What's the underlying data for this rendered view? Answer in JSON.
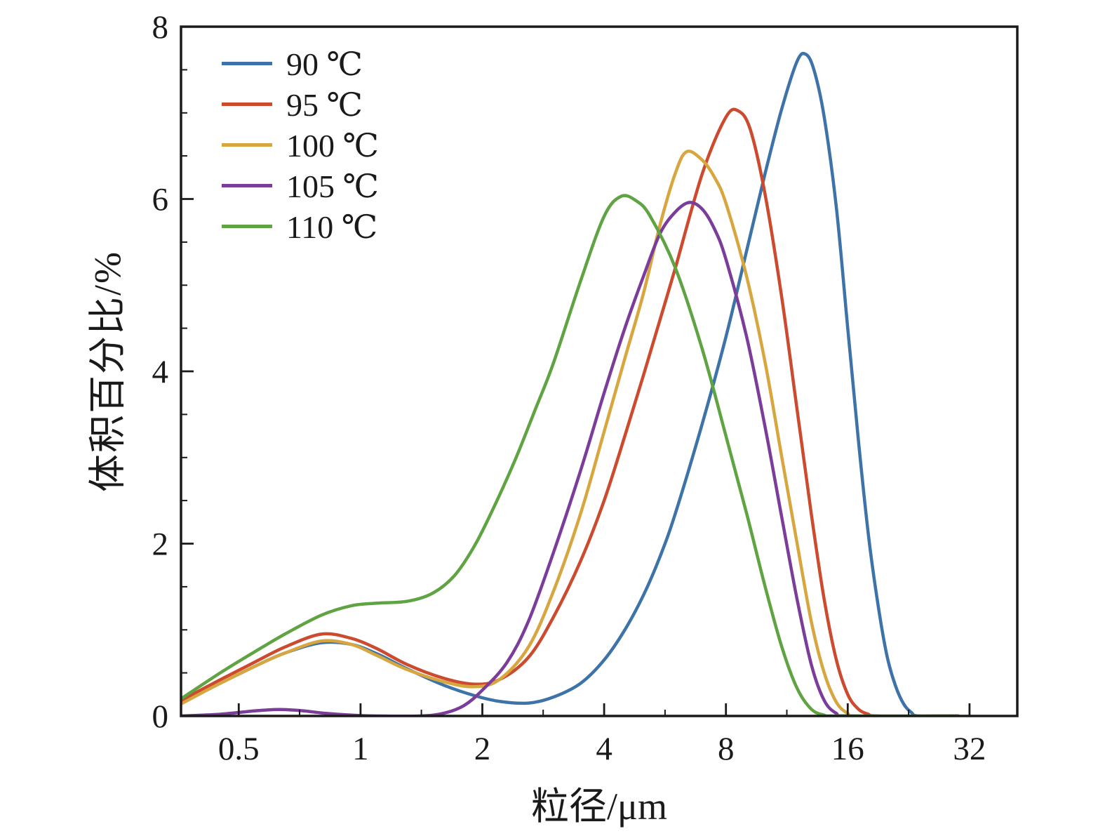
{
  "chart_data": {
    "type": "line",
    "title": "",
    "xlabel": "粒径/μm",
    "ylabel": "体积百分比/%",
    "x_scale": "log2",
    "xlim": [
      0.36,
      42
    ],
    "ylim": [
      0,
      8
    ],
    "x_ticks": [
      0.5,
      1,
      2,
      4,
      8,
      16,
      32
    ],
    "x_tick_labels": [
      "0.5",
      "1",
      "2",
      "4",
      "8",
      "16",
      "32"
    ],
    "x_minor_ticks": [
      0.707,
      1.414,
      2.828,
      5.657,
      11.314,
      22.627
    ],
    "y_ticks": [
      0,
      2,
      4,
      6,
      8
    ],
    "y_tick_labels": [
      "0",
      "2",
      "4",
      "6",
      "8"
    ],
    "y_minor_ticks": [
      0.5,
      1,
      1.5,
      2.5,
      3,
      3.5,
      4.5,
      5,
      5.5,
      6.5,
      7,
      7.5
    ],
    "grid": false,
    "legend_position": "top-left",
    "frame_color": "#1a1a1a",
    "series": [
      {
        "name": "90 ℃",
        "color": "#3d73a8",
        "points": [
          [
            0.36,
            0.15
          ],
          [
            0.45,
            0.38
          ],
          [
            0.55,
            0.58
          ],
          [
            0.65,
            0.73
          ],
          [
            0.8,
            0.85
          ],
          [
            0.95,
            0.83
          ],
          [
            1.1,
            0.72
          ],
          [
            1.3,
            0.55
          ],
          [
            1.6,
            0.36
          ],
          [
            1.9,
            0.24
          ],
          [
            2.2,
            0.17
          ],
          [
            2.6,
            0.15
          ],
          [
            3.0,
            0.22
          ],
          [
            3.5,
            0.38
          ],
          [
            4.0,
            0.65
          ],
          [
            4.5,
            1.0
          ],
          [
            5.0,
            1.4
          ],
          [
            5.5,
            1.85
          ],
          [
            6.0,
            2.35
          ],
          [
            7.0,
            3.4
          ],
          [
            8.0,
            4.4
          ],
          [
            9.0,
            5.4
          ],
          [
            10.0,
            6.3
          ],
          [
            11.0,
            7.05
          ],
          [
            12.0,
            7.6
          ],
          [
            12.6,
            7.68
          ],
          [
            13.2,
            7.5
          ],
          [
            14.0,
            6.95
          ],
          [
            15.0,
            5.9
          ],
          [
            16.0,
            4.5
          ],
          [
            17.0,
            3.2
          ],
          [
            18.0,
            2.1
          ],
          [
            19.0,
            1.3
          ],
          [
            20.0,
            0.7
          ],
          [
            21.0,
            0.35
          ],
          [
            22.0,
            0.14
          ],
          [
            23.0,
            0.04
          ],
          [
            24.0,
            0.0
          ],
          [
            30.0,
            0.0
          ]
        ]
      },
      {
        "name": "95 ℃",
        "color": "#cc4a2e",
        "points": [
          [
            0.36,
            0.18
          ],
          [
            0.45,
            0.42
          ],
          [
            0.55,
            0.63
          ],
          [
            0.65,
            0.8
          ],
          [
            0.8,
            0.95
          ],
          [
            0.95,
            0.9
          ],
          [
            1.1,
            0.78
          ],
          [
            1.3,
            0.6
          ],
          [
            1.6,
            0.44
          ],
          [
            1.9,
            0.37
          ],
          [
            2.2,
            0.42
          ],
          [
            2.6,
            0.68
          ],
          [
            3.0,
            1.15
          ],
          [
            3.5,
            1.8
          ],
          [
            4.0,
            2.5
          ],
          [
            4.5,
            3.25
          ],
          [
            5.0,
            3.95
          ],
          [
            5.5,
            4.6
          ],
          [
            6.0,
            5.2
          ],
          [
            7.0,
            6.3
          ],
          [
            8.0,
            6.95
          ],
          [
            8.6,
            7.02
          ],
          [
            9.2,
            6.8
          ],
          [
            10.0,
            6.05
          ],
          [
            11.0,
            4.85
          ],
          [
            12.0,
            3.55
          ],
          [
            13.0,
            2.35
          ],
          [
            14.0,
            1.35
          ],
          [
            15.0,
            0.65
          ],
          [
            16.0,
            0.25
          ],
          [
            17.0,
            0.08
          ],
          [
            18.0,
            0.02
          ],
          [
            19.0,
            0.0
          ],
          [
            30.0,
            0.0
          ]
        ]
      },
      {
        "name": "100 ℃",
        "color": "#d8a63f",
        "points": [
          [
            0.36,
            0.14
          ],
          [
            0.45,
            0.38
          ],
          [
            0.55,
            0.58
          ],
          [
            0.65,
            0.73
          ],
          [
            0.8,
            0.87
          ],
          [
            0.95,
            0.83
          ],
          [
            1.1,
            0.7
          ],
          [
            1.3,
            0.54
          ],
          [
            1.6,
            0.4
          ],
          [
            1.9,
            0.34
          ],
          [
            2.2,
            0.42
          ],
          [
            2.6,
            0.8
          ],
          [
            3.0,
            1.45
          ],
          [
            3.5,
            2.35
          ],
          [
            4.0,
            3.3
          ],
          [
            4.5,
            4.15
          ],
          [
            5.0,
            4.9
          ],
          [
            5.5,
            5.7
          ],
          [
            6.0,
            6.3
          ],
          [
            6.4,
            6.55
          ],
          [
            7.0,
            6.45
          ],
          [
            7.5,
            6.25
          ],
          [
            8.0,
            5.95
          ],
          [
            9.0,
            5.1
          ],
          [
            10.0,
            4.1
          ],
          [
            11.0,
            3.0
          ],
          [
            12.0,
            2.0
          ],
          [
            13.0,
            1.1
          ],
          [
            14.0,
            0.5
          ],
          [
            15.0,
            0.16
          ],
          [
            16.0,
            0.03
          ],
          [
            17.0,
            0.0
          ],
          [
            30.0,
            0.0
          ]
        ]
      },
      {
        "name": "105 ℃",
        "color": "#7c3d9a",
        "points": [
          [
            0.36,
            0.0
          ],
          [
            0.45,
            0.02
          ],
          [
            0.55,
            0.06
          ],
          [
            0.63,
            0.075
          ],
          [
            0.72,
            0.06
          ],
          [
            0.82,
            0.03
          ],
          [
            0.95,
            0.01
          ],
          [
            1.1,
            0.0
          ],
          [
            1.4,
            0.0
          ],
          [
            1.6,
            0.03
          ],
          [
            1.8,
            0.12
          ],
          [
            2.0,
            0.3
          ],
          [
            2.3,
            0.62
          ],
          [
            2.6,
            1.1
          ],
          [
            3.0,
            1.9
          ],
          [
            3.5,
            2.85
          ],
          [
            4.0,
            3.75
          ],
          [
            4.5,
            4.5
          ],
          [
            5.0,
            5.1
          ],
          [
            5.5,
            5.6
          ],
          [
            6.0,
            5.85
          ],
          [
            6.5,
            5.96
          ],
          [
            7.0,
            5.88
          ],
          [
            7.5,
            5.65
          ],
          [
            8.0,
            5.3
          ],
          [
            9.0,
            4.4
          ],
          [
            10.0,
            3.35
          ],
          [
            11.0,
            2.3
          ],
          [
            12.0,
            1.35
          ],
          [
            13.0,
            0.6
          ],
          [
            14.0,
            0.18
          ],
          [
            15.0,
            0.03
          ],
          [
            16.0,
            0.0
          ],
          [
            30.0,
            0.0
          ]
        ]
      },
      {
        "name": "110 ℃",
        "color": "#5fa342",
        "points": [
          [
            0.36,
            0.2
          ],
          [
            0.45,
            0.5
          ],
          [
            0.55,
            0.75
          ],
          [
            0.65,
            0.95
          ],
          [
            0.8,
            1.17
          ],
          [
            0.95,
            1.28
          ],
          [
            1.1,
            1.31
          ],
          [
            1.3,
            1.33
          ],
          [
            1.5,
            1.42
          ],
          [
            1.7,
            1.62
          ],
          [
            1.9,
            1.95
          ],
          [
            2.1,
            2.35
          ],
          [
            2.4,
            2.95
          ],
          [
            2.7,
            3.55
          ],
          [
            3.0,
            4.1
          ],
          [
            3.5,
            5.05
          ],
          [
            4.0,
            5.8
          ],
          [
            4.4,
            6.03
          ],
          [
            4.8,
            5.98
          ],
          [
            5.2,
            5.8
          ],
          [
            6.0,
            5.2
          ],
          [
            7.0,
            4.25
          ],
          [
            8.0,
            3.25
          ],
          [
            9.0,
            2.35
          ],
          [
            10.0,
            1.5
          ],
          [
            11.0,
            0.8
          ],
          [
            12.0,
            0.32
          ],
          [
            13.0,
            0.08
          ],
          [
            14.0,
            0.01
          ],
          [
            15.0,
            0.0
          ],
          [
            30.0,
            0.0
          ]
        ]
      }
    ]
  }
}
